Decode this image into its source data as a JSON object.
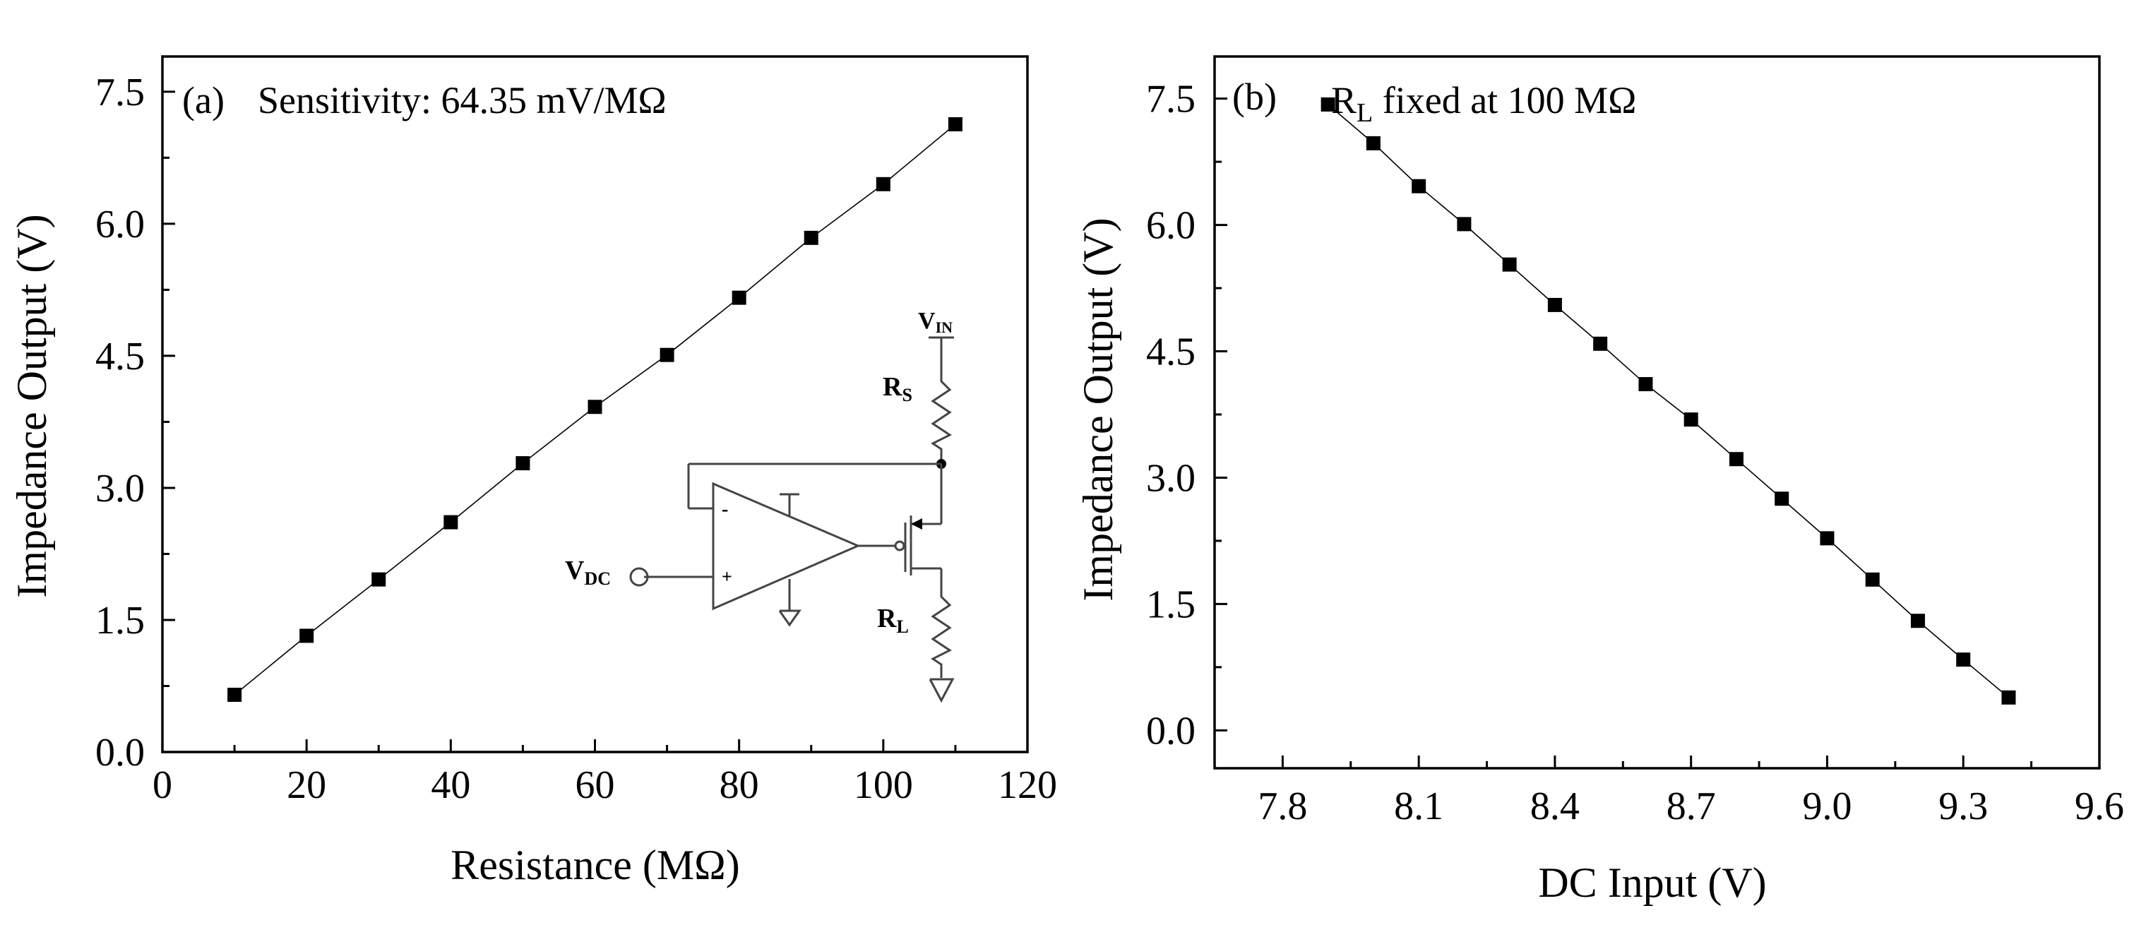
{
  "chart_data": [
    {
      "type": "line",
      "panel_label": "(a)",
      "annotation": "Sensitivity: 64.35 mV/MΩ",
      "xlabel": "Resistance (MΩ)",
      "ylabel": "Impedance Output (V)",
      "xlim": [
        0,
        120
      ],
      "ylim": [
        0,
        7.9
      ],
      "xticks": [
        "0",
        "20",
        "40",
        "60",
        "80",
        "100",
        "120"
      ],
      "xtick_values": [
        0,
        20,
        40,
        60,
        80,
        100,
        120
      ],
      "yticks": [
        "0.0",
        "1.5",
        "3.0",
        "4.5",
        "6.0",
        "7.5"
      ],
      "ytick_values": [
        0,
        1.5,
        3,
        4.5,
        6,
        7.5
      ],
      "marker": "square",
      "series": [
        {
          "name": "Impedance Output",
          "x": [
            10,
            20,
            30,
            40,
            50,
            60,
            70,
            80,
            90,
            100,
            110
          ],
          "y": [
            0.65,
            1.32,
            1.96,
            2.61,
            3.28,
            3.92,
            4.51,
            5.16,
            5.84,
            6.45,
            7.13
          ]
        }
      ],
      "inset": {
        "vin": "V",
        "vin_sub": "IN",
        "rs": "R",
        "rs_sub": "S",
        "rl": "R",
        "rl_sub": "L",
        "vdc": "V",
        "vdc_sub": "DC",
        "minus": "-",
        "plus": "+"
      }
    },
    {
      "type": "line",
      "panel_label": "(b)",
      "annotation_main": "R",
      "annotation_sub": "L",
      "annotation_rest": " fixed at 100 MΩ",
      "xlabel": "DC Input (V)",
      "ylabel": "Impedance Output (V)",
      "xlim": [
        7.65,
        9.6
      ],
      "ylim": [
        -0.45,
        8.0
      ],
      "xticks": [
        "7.8",
        "8.1",
        "8.4",
        "8.7",
        "9.0",
        "9.3",
        "9.6"
      ],
      "xtick_values": [
        7.8,
        8.1,
        8.4,
        8.7,
        9.0,
        9.3,
        9.6
      ],
      "yticks": [
        "0.0",
        "1.5",
        "3.0",
        "4.5",
        "6.0",
        "7.5"
      ],
      "ytick_values": [
        0,
        1.5,
        3,
        4.5,
        6,
        7.5
      ],
      "marker": "square",
      "series": [
        {
          "name": "Impedance Output",
          "x": [
            7.9,
            8.0,
            8.1,
            8.2,
            8.3,
            8.4,
            8.5,
            8.6,
            8.7,
            8.8,
            8.9,
            9.0,
            9.1,
            9.2,
            9.3,
            9.4
          ],
          "y": [
            7.43,
            6.97,
            6.46,
            6.01,
            5.53,
            5.05,
            4.59,
            4.11,
            3.69,
            3.22,
            2.75,
            2.28,
            1.79,
            1.3,
            0.84,
            0.39
          ]
        }
      ]
    }
  ]
}
